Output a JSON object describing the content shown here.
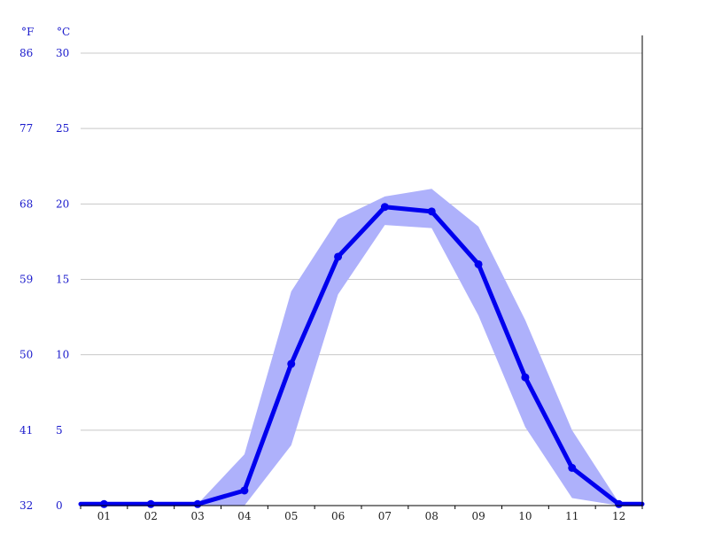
{
  "chart_data": {
    "type": "area",
    "title": "",
    "xlabel": "",
    "ylabel": "",
    "units": {
      "fahrenheit": "°F",
      "celsius": "°C"
    },
    "categories": [
      "01",
      "02",
      "03",
      "04",
      "05",
      "06",
      "07",
      "08",
      "09",
      "10",
      "11",
      "12"
    ],
    "ylim": [
      0,
      30
    ],
    "yticks_celsius": [
      "30",
      "25",
      "20",
      "15",
      "10",
      "5",
      "0"
    ],
    "yticks_fahrenheit": [
      "86",
      "77",
      "68",
      "59",
      "50",
      "41",
      "32"
    ],
    "grid": true,
    "series": [
      {
        "kind": "line",
        "values": [
          0.1,
          0.1,
          0.1,
          1.0,
          9.4,
          16.5,
          19.8,
          19.5,
          16.0,
          8.5,
          2.5,
          0.1
        ]
      },
      {
        "kind": "band-upper",
        "values": [
          0.1,
          0.1,
          0.1,
          3.4,
          14.2,
          19.0,
          20.5,
          21.0,
          18.5,
          12.3,
          5.0,
          0.2
        ]
      },
      {
        "kind": "band-lower",
        "values": [
          0.0,
          0.0,
          0.0,
          0.0,
          4.0,
          14.0,
          18.6,
          18.4,
          12.6,
          5.2,
          0.5,
          0.0
        ]
      }
    ],
    "colors": {
      "line": "#0000ee",
      "band": "#aeb1fb",
      "grid": "#c8c8c8",
      "axis": "#000000",
      "tick_text": "#1a1acc"
    }
  }
}
